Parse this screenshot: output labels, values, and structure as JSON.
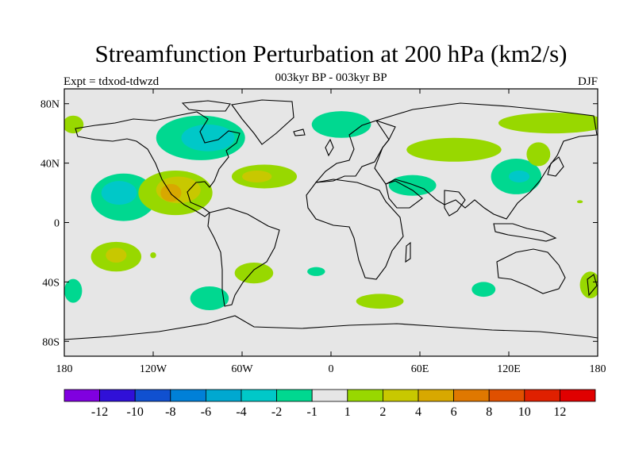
{
  "header": {
    "title": "Streamfunction Perturbation at 200 hPa (km2/s)",
    "subtitle": "003kyr BP - 003kyr BP",
    "experiment": "Expt = tdxod-tdwzd",
    "season": "DJF"
  },
  "colors": {
    "land_bg": "#e6e6e6",
    "m1": "#00d890",
    "m2": "#00c8c8",
    "p1": "#98d800",
    "p2": "#c8c800",
    "p4": "#d8a800"
  },
  "chart_data": {
    "type": "contour-map",
    "title": "Streamfunction Perturbation at 200 hPa (km2/s)",
    "units": "km2/s",
    "projection": "cylindrical equidistant",
    "lon_range": [
      -180,
      180
    ],
    "lat_range": [
      -90,
      90
    ],
    "x_ticks": [
      {
        "lon": -180,
        "label": "180"
      },
      {
        "lon": -120,
        "label": "120W"
      },
      {
        "lon": -60,
        "label": "60W"
      },
      {
        "lon": 0,
        "label": "0"
      },
      {
        "lon": 60,
        "label": "60E"
      },
      {
        "lon": 120,
        "label": "120E"
      },
      {
        "lon": 180,
        "label": "180"
      }
    ],
    "y_ticks": [
      {
        "lat": 80,
        "label": "80N"
      },
      {
        "lat": 40,
        "label": "40N"
      },
      {
        "lat": 0,
        "label": "0"
      },
      {
        "lat": -40,
        "label": "40S"
      },
      {
        "lat": -80,
        "label": "80S"
      }
    ],
    "colorbar": {
      "labels": [
        "-12",
        "-10",
        "-8",
        "-6",
        "-4",
        "-2",
        "-1",
        "1",
        "2",
        "4",
        "6",
        "8",
        "10",
        "12"
      ],
      "colors": [
        "#8000e0",
        "#3010d8",
        "#1050d0",
        "#0080d8",
        "#00a8d0",
        "#00c8c8",
        "#00d890",
        "#e6e6e6",
        "#98d800",
        "#c8c800",
        "#d8a800",
        "#e07800",
        "#e05000",
        "#e02000",
        "#e00000"
      ]
    },
    "anomalies": [
      {
        "lon": -88,
        "lat": 57,
        "rlon": 30,
        "rlat": 15,
        "level": -1
      },
      {
        "lon": -83,
        "lat": 57,
        "rlon": 18,
        "rlat": 9,
        "level": -2
      },
      {
        "lon": 7,
        "lat": 66,
        "rlon": 20,
        "rlat": 9,
        "level": -1
      },
      {
        "lon": -140,
        "lat": 17,
        "rlon": 22,
        "rlat": 16,
        "level": -1
      },
      {
        "lon": -143,
        "lat": 20,
        "rlon": 12,
        "rlat": 8,
        "level": -2
      },
      {
        "lon": 55,
        "lat": 25,
        "rlon": 16,
        "rlat": 7,
        "level": -1
      },
      {
        "lon": 125,
        "lat": 31,
        "rlon": 17,
        "rlat": 12,
        "level": -1
      },
      {
        "lon": 127,
        "lat": 31,
        "rlon": 7,
        "rlat": 4,
        "level": -2
      },
      {
        "lon": -82,
        "lat": -51,
        "rlon": 13,
        "rlat": 8,
        "level": -1
      },
      {
        "lon": -174,
        "lat": -46,
        "rlon": 6,
        "rlat": 8,
        "level": -1
      },
      {
        "lon": 103,
        "lat": -45,
        "rlon": 8,
        "rlat": 5,
        "level": -1
      },
      {
        "lon": -10,
        "lat": -33,
        "rlon": 6,
        "rlat": 3,
        "level": -1
      },
      {
        "lon": -105,
        "lat": 20,
        "rlon": 25,
        "rlat": 15,
        "level": 1
      },
      {
        "lon": -103,
        "lat": 22,
        "rlon": 15,
        "rlat": 9,
        "level": 2
      },
      {
        "lon": -108,
        "lat": 20,
        "rlon": 7,
        "rlat": 6,
        "level": 4
      },
      {
        "lon": -45,
        "lat": 31,
        "rlon": 22,
        "rlat": 8,
        "level": 1
      },
      {
        "lon": -50,
        "lat": 31,
        "rlon": 10,
        "rlat": 4,
        "level": 2
      },
      {
        "lon": 83,
        "lat": 49,
        "rlon": 32,
        "rlat": 8,
        "level": 1
      },
      {
        "lon": 150,
        "lat": 67,
        "rlon": 37,
        "rlat": 7,
        "level": 1
      },
      {
        "lon": -174,
        "lat": 66,
        "rlon": 7,
        "rlat": 6,
        "level": 1
      },
      {
        "lon": 140,
        "lat": 46,
        "rlon": 8,
        "rlat": 8,
        "level": 1
      },
      {
        "lon": -145,
        "lat": -23,
        "rlon": 17,
        "rlat": 10,
        "level": 1
      },
      {
        "lon": -145,
        "lat": -22,
        "rlon": 7,
        "rlat": 5,
        "level": 2
      },
      {
        "lon": -52,
        "lat": -34,
        "rlon": 13,
        "rlat": 7,
        "level": 1
      },
      {
        "lon": 33,
        "lat": -53,
        "rlon": 16,
        "rlat": 5,
        "level": 1
      },
      {
        "lon": 175,
        "lat": -42,
        "rlon": 7,
        "rlat": 9,
        "level": 1
      },
      {
        "lon": -120,
        "lat": -22,
        "rlon": 2,
        "rlat": 2,
        "level": 1
      },
      {
        "lon": 168,
        "lat": 14,
        "rlon": 2,
        "rlat": 1,
        "level": 1
      }
    ]
  }
}
